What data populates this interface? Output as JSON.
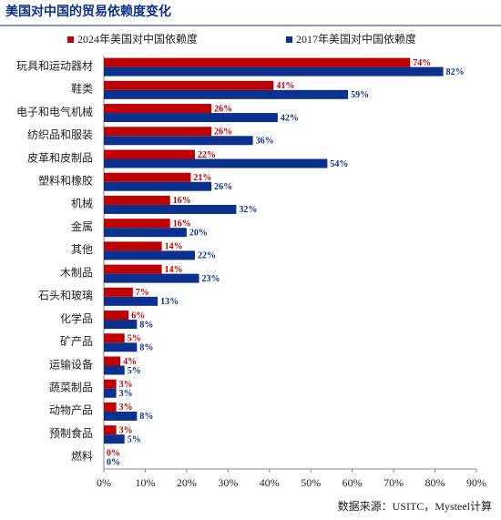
{
  "chart_data": {
    "type": "hbar",
    "title": "美国对中国的贸易依赖度变化",
    "categories": [
      "玩具和运动器材",
      "鞋类",
      "电子和电气机械",
      "纺织品和服装",
      "皮革和皮制品",
      "塑料和橡胶",
      "机械",
      "金属",
      "其他",
      "木制品",
      "石头和玻璃",
      "化学品",
      "矿产品",
      "运输设备",
      "蔬菜制品",
      "动物产品",
      "预制食品",
      "燃料"
    ],
    "series": [
      {
        "name": "2024年美国对中国依赖度",
        "color": "#c00000",
        "values": [
          74,
          41,
          26,
          26,
          22,
          21,
          16,
          16,
          14,
          14,
          7,
          6,
          5,
          4,
          3,
          3,
          3,
          0
        ],
        "value_labels": [
          "74%",
          "41%",
          "26%",
          "26%",
          "22%",
          "21%",
          "16%",
          "16%",
          "14%",
          "14%",
          "7%",
          "6%",
          "5%",
          "4%",
          "3%",
          "3%",
          "3%",
          "0%"
        ]
      },
      {
        "name": "2017年美国对中国依赖度",
        "color": "#0b318f",
        "values": [
          82,
          59,
          42,
          36,
          54,
          26,
          32,
          20,
          22,
          23,
          13,
          8,
          8,
          5,
          3,
          8,
          5,
          0
        ],
        "value_labels": [
          "82%",
          "59%",
          "42%",
          "36%",
          "54%",
          "26%",
          "32%",
          "20%",
          "22%",
          "23%",
          "13%",
          "8%",
          "8%",
          "5%",
          "3%",
          "8%",
          "5%",
          "0%"
        ]
      }
    ],
    "xlim": [
      0,
      90
    ],
    "xticks": [
      {
        "value": 0,
        "label": "0%"
      },
      {
        "value": 10,
        "label": "10%"
      },
      {
        "value": 20,
        "label": "20%"
      },
      {
        "value": 30,
        "label": "30%"
      },
      {
        "value": 40,
        "label": "40%"
      },
      {
        "value": 50,
        "label": "50%"
      },
      {
        "value": 60,
        "label": "60%"
      },
      {
        "value": 70,
        "label": "70%"
      },
      {
        "value": 80,
        "label": "80%"
      },
      {
        "value": 90,
        "label": "90%"
      }
    ],
    "source": "数据来源：USITC，Mysteel计算"
  }
}
